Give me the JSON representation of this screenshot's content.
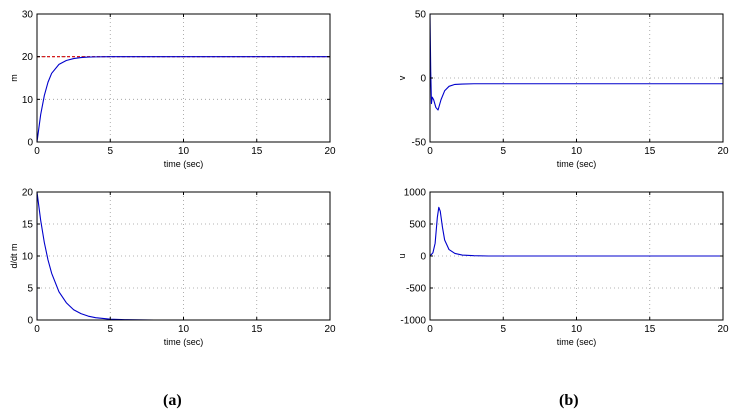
{
  "captions": {
    "a": "(a)",
    "b": "(b)"
  },
  "chart_data": [
    {
      "id": "a-top",
      "type": "line",
      "xlabel": "time (sec)",
      "ylabel": "m",
      "xlim": [
        0,
        20
      ],
      "ylim": [
        0,
        30
      ],
      "xticks": [
        0,
        5,
        10,
        15,
        20
      ],
      "yticks": [
        0,
        10,
        20,
        30
      ],
      "grid": true,
      "series": [
        {
          "color": "#d00000",
          "dashed": true,
          "x": [
            0,
            20
          ],
          "y": [
            20,
            20
          ]
        },
        {
          "color": "#0000cc",
          "dashed": false,
          "x": [
            0,
            0.25,
            0.5,
            0.75,
            1,
            1.5,
            2,
            2.5,
            3,
            3.5,
            4,
            5,
            6,
            8,
            10,
            15,
            20
          ],
          "y": [
            0,
            6.4,
            10.9,
            14.0,
            16.1,
            18.2,
            19.1,
            19.55,
            19.8,
            19.9,
            19.95,
            20,
            20,
            20,
            20,
            20,
            20
          ]
        }
      ]
    },
    {
      "id": "a-bottom",
      "type": "line",
      "xlabel": "time (sec)",
      "ylabel": "d/dt m",
      "xlim": [
        0,
        20
      ],
      "ylim": [
        0,
        20
      ],
      "xticks": [
        0,
        5,
        10,
        15,
        20
      ],
      "yticks": [
        0,
        5,
        10,
        15,
        20
      ],
      "grid": true,
      "series": [
        {
          "color": "#d00000",
          "dashed": false,
          "x": [
            0,
            20
          ],
          "y": [
            0,
            0
          ]
        },
        {
          "color": "#0000cc",
          "dashed": false,
          "x": [
            0,
            0,
            0.25,
            0.5,
            0.75,
            1,
            1.5,
            2,
            2.5,
            3,
            3.5,
            4,
            5,
            6,
            8,
            20
          ],
          "y": [
            0,
            20,
            15.6,
            12.1,
            9.4,
            7.3,
            4.4,
            2.7,
            1.6,
            1.0,
            0.6,
            0.36,
            0.13,
            0.05,
            0,
            0
          ]
        }
      ]
    },
    {
      "id": "b-top",
      "type": "line",
      "xlabel": "time (sec)",
      "ylabel": "v",
      "xlim": [
        0,
        20
      ],
      "ylim": [
        -50,
        50
      ],
      "xticks": [
        0,
        5,
        10,
        15,
        20
      ],
      "yticks": [
        -50,
        0,
        50
      ],
      "grid": true,
      "series": [
        {
          "color": "#0000cc",
          "dashed": false,
          "x": [
            0,
            0.05,
            0.1,
            0.15,
            0.25,
            0.4,
            0.55,
            0.75,
            1.0,
            1.3,
            1.7,
            2.2,
            3,
            4,
            5,
            20
          ],
          "y": [
            50,
            5,
            -20,
            -15,
            -17,
            -23,
            -25,
            -17,
            -10,
            -6.5,
            -5,
            -4.7,
            -4.5,
            -4.5,
            -4.5,
            -4.5
          ]
        }
      ]
    },
    {
      "id": "b-bottom",
      "type": "line",
      "xlabel": "time (sec)",
      "ylabel": "u",
      "xlim": [
        0,
        20
      ],
      "ylim": [
        -1000,
        1000
      ],
      "xticks": [
        0,
        5,
        10,
        15,
        20
      ],
      "yticks": [
        -1000,
        -500,
        0,
        500,
        1000
      ],
      "grid": true,
      "series": [
        {
          "color": "#0000cc",
          "dashed": false,
          "x": [
            0,
            0.2,
            0.35,
            0.5,
            0.6,
            0.7,
            0.85,
            1.0,
            1.3,
            1.7,
            2.2,
            3,
            4,
            5,
            20
          ],
          "y": [
            0,
            50,
            200,
            600,
            760,
            700,
            450,
            250,
            100,
            40,
            15,
            5,
            0,
            0,
            0
          ]
        }
      ]
    }
  ]
}
